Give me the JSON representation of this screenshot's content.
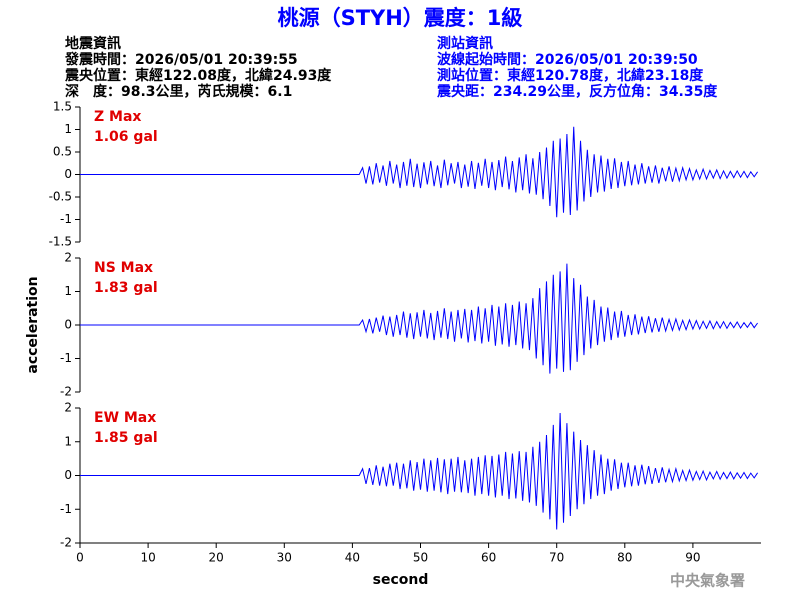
{
  "header": {
    "title": "桃源（STYH）震度：1級",
    "left": [
      "地震資訊",
      "發震時間：2026/05/01 20:39:55",
      "震央位置：東經122.08度，北緯24.93度",
      "深　度：98.3公里，芮氏規模：6.1"
    ],
    "right": [
      "測站資訊",
      "波線起始時間：2026/05/01 20:39:50",
      "測站位置：東經120.78度，北緯23.18度",
      "震央距：234.29公里，反方位角：34.35度"
    ],
    "footer": "中央氣象署"
  },
  "chart_data": [
    {
      "type": "line",
      "color": "#0000ff",
      "annotation": [
        "Z Max",
        "1.06 gal"
      ],
      "annotation_color": "#e00000",
      "xlim": [
        0,
        100
      ],
      "ylim": [
        -1.5,
        1.5
      ],
      "yticks": [
        1.5,
        1,
        0.5,
        0,
        -0.5,
        -1,
        -1.5
      ],
      "x": [
        0,
        41,
        41.5,
        42,
        42.5,
        43,
        43.5,
        44,
        44.5,
        45,
        45.5,
        46,
        46.5,
        47,
        47.5,
        48,
        48.5,
        49,
        49.5,
        50,
        50.5,
        51,
        51.5,
        52,
        52.5,
        53,
        53.5,
        54,
        54.5,
        55,
        55.5,
        56,
        56.5,
        57,
        57.5,
        58,
        58.5,
        59,
        59.5,
        60,
        60.5,
        61,
        61.5,
        62,
        62.5,
        63,
        63.5,
        64,
        64.5,
        65,
        65.5,
        66,
        66.5,
        67,
        67.5,
        68,
        68.5,
        69,
        69.5,
        70,
        70.5,
        71,
        71.5,
        72,
        72.5,
        73,
        73.5,
        74,
        74.5,
        75,
        75.5,
        76,
        76.5,
        77,
        77.5,
        78,
        78.5,
        79,
        79.5,
        80,
        80.5,
        81,
        81.5,
        82,
        82.5,
        83,
        83.5,
        84,
        84.5,
        85,
        85.5,
        86,
        86.5,
        87,
        87.5,
        88,
        88.5,
        89,
        89.5,
        90,
        90.5,
        91,
        91.5,
        92,
        92.5,
        93,
        93.5,
        94,
        94.5,
        95,
        95.5,
        96,
        96.5,
        97,
        97.5,
        98,
        98.5,
        99,
        99.5
      ],
      "values": [
        0,
        0,
        0.15,
        -0.2,
        0.18,
        -0.22,
        0.25,
        -0.18,
        0.2,
        -0.25,
        0.3,
        -0.2,
        0.22,
        -0.3,
        0.28,
        -0.25,
        0.35,
        -0.28,
        0.24,
        -0.3,
        0.27,
        -0.22,
        0.3,
        -0.26,
        0.2,
        -0.3,
        0.33,
        -0.24,
        0.25,
        -0.2,
        0.28,
        -0.3,
        0.22,
        -0.27,
        0.3,
        -0.32,
        0.26,
        -0.25,
        0.35,
        -0.3,
        0.28,
        -0.35,
        0.32,
        -0.28,
        0.4,
        -0.33,
        0.3,
        -0.4,
        0.38,
        -0.35,
        0.45,
        -0.42,
        0.36,
        -0.45,
        0.5,
        -0.55,
        0.6,
        -0.7,
        0.75,
        -0.95,
        0.8,
        -0.85,
        0.9,
        -0.9,
        1.06,
        -0.8,
        0.75,
        -0.6,
        0.55,
        -0.5,
        0.45,
        -0.4,
        0.42,
        -0.38,
        0.35,
        -0.32,
        0.36,
        -0.3,
        0.28,
        -0.26,
        0.3,
        -0.24,
        0.22,
        -0.22,
        0.25,
        -0.2,
        0.18,
        -0.18,
        0.2,
        -0.2,
        0.15,
        -0.15,
        0.18,
        -0.16,
        0.14,
        -0.14,
        0.15,
        -0.12,
        0.13,
        -0.12,
        0.1,
        -0.1,
        0.12,
        -0.1,
        0.09,
        -0.08,
        0.1,
        -0.09,
        0.08,
        -0.08,
        0.07,
        -0.07,
        0.08,
        -0.06,
        0.07,
        -0.07,
        0.06,
        -0.05,
        0.06
      ]
    },
    {
      "type": "line",
      "color": "#0000ff",
      "annotation": [
        "NS Max",
        "1.83 gal"
      ],
      "annotation_color": "#e00000",
      "ylabel": "acceleration",
      "xlim": [
        0,
        100
      ],
      "ylim": [
        -2,
        2
      ],
      "yticks": [
        2,
        1,
        0,
        -1,
        -2
      ],
      "x": [
        0,
        41,
        41.5,
        42,
        42.5,
        43,
        43.5,
        44,
        44.5,
        45,
        45.5,
        46,
        46.5,
        47,
        47.5,
        48,
        48.5,
        49,
        49.5,
        50,
        50.5,
        51,
        51.5,
        52,
        52.5,
        53,
        53.5,
        54,
        54.5,
        55,
        55.5,
        56,
        56.5,
        57,
        57.5,
        58,
        58.5,
        59,
        59.5,
        60,
        60.5,
        61,
        61.5,
        62,
        62.5,
        63,
        63.5,
        64,
        64.5,
        65,
        65.5,
        66,
        66.5,
        67,
        67.5,
        68,
        68.5,
        69,
        69.5,
        70,
        70.5,
        71,
        71.5,
        72,
        72.5,
        73,
        73.5,
        74,
        74.5,
        75,
        75.5,
        76,
        76.5,
        77,
        77.5,
        78,
        78.5,
        79,
        79.5,
        80,
        80.5,
        81,
        81.5,
        82,
        82.5,
        83,
        83.5,
        84,
        84.5,
        85,
        85.5,
        86,
        86.5,
        87,
        87.5,
        88,
        88.5,
        89,
        89.5,
        90,
        90.5,
        91,
        91.5,
        92,
        92.5,
        93,
        93.5,
        94,
        94.5,
        95,
        95.5,
        96,
        96.5,
        97,
        97.5,
        98,
        98.5,
        99,
        99.5
      ],
      "values": [
        0,
        0,
        0.15,
        -0.2,
        0.18,
        -0.25,
        0.22,
        -0.2,
        0.28,
        -0.3,
        0.25,
        -0.35,
        0.3,
        -0.3,
        0.4,
        -0.38,
        0.35,
        -0.42,
        0.38,
        -0.35,
        0.45,
        -0.4,
        0.36,
        -0.45,
        0.42,
        -0.38,
        0.5,
        -0.42,
        0.4,
        -0.5,
        0.45,
        -0.4,
        0.48,
        -0.52,
        0.45,
        -0.48,
        0.55,
        -0.55,
        0.5,
        -0.5,
        0.6,
        -0.62,
        0.55,
        -0.58,
        0.65,
        -0.65,
        0.6,
        -0.6,
        0.7,
        -0.7,
        0.65,
        -0.75,
        0.8,
        -1.0,
        1.1,
        -1.2,
        1.3,
        -1.45,
        1.5,
        -1.3,
        1.6,
        -1.4,
        1.83,
        -1.35,
        1.4,
        -1.1,
        1.2,
        -0.9,
        0.85,
        -0.7,
        0.75,
        -0.6,
        0.55,
        -0.5,
        0.52,
        -0.45,
        0.4,
        -0.38,
        0.42,
        -0.35,
        0.3,
        -0.3,
        0.32,
        -0.28,
        0.25,
        -0.24,
        0.26,
        -0.22,
        0.2,
        -0.2,
        0.22,
        -0.18,
        0.17,
        -0.16,
        0.18,
        -0.15,
        0.14,
        -0.14,
        0.15,
        -0.12,
        0.13,
        -0.12,
        0.11,
        -0.1,
        0.12,
        -0.11,
        0.1,
        -0.09,
        0.1,
        -0.1,
        0.08,
        -0.08,
        0.09,
        -0.09,
        0.07,
        -0.07,
        0.08,
        -0.08,
        0.06
      ]
    },
    {
      "type": "line",
      "color": "#0000ff",
      "annotation": [
        "EW Max",
        "1.85 gal"
      ],
      "annotation_color": "#e00000",
      "xlabel": "second",
      "xlim": [
        0,
        100
      ],
      "xticks": [
        0,
        10,
        20,
        30,
        40,
        50,
        60,
        70,
        80,
        90
      ],
      "ylim": [
        -2,
        2
      ],
      "yticks": [
        2,
        1,
        0,
        -1,
        -2
      ],
      "x": [
        0,
        41,
        41.5,
        42,
        42.5,
        43,
        43.5,
        44,
        44.5,
        45,
        45.5,
        46,
        46.5,
        47,
        47.5,
        48,
        48.5,
        49,
        49.5,
        50,
        50.5,
        51,
        51.5,
        52,
        52.5,
        53,
        53.5,
        54,
        54.5,
        55,
        55.5,
        56,
        56.5,
        57,
        57.5,
        58,
        58.5,
        59,
        59.5,
        60,
        60.5,
        61,
        61.5,
        62,
        62.5,
        63,
        63.5,
        64,
        64.5,
        65,
        65.5,
        66,
        66.5,
        67,
        67.5,
        68,
        68.5,
        69,
        69.5,
        70,
        70.5,
        71,
        71.5,
        72,
        72.5,
        73,
        73.5,
        74,
        74.5,
        75,
        75.5,
        76,
        76.5,
        77,
        77.5,
        78,
        78.5,
        79,
        79.5,
        80,
        80.5,
        81,
        81.5,
        82,
        82.5,
        83,
        83.5,
        84,
        84.5,
        85,
        85.5,
        86,
        86.5,
        87,
        87.5,
        88,
        88.5,
        89,
        89.5,
        90,
        90.5,
        91,
        91.5,
        92,
        92.5,
        93,
        93.5,
        94,
        94.5,
        95,
        95.5,
        96,
        96.5,
        97,
        97.5,
        98,
        98.5,
        99,
        99.5
      ],
      "values": [
        0,
        0,
        0.2,
        -0.25,
        0.22,
        -0.28,
        0.3,
        -0.3,
        0.26,
        -0.32,
        0.35,
        -0.3,
        0.38,
        -0.4,
        0.35,
        -0.38,
        0.45,
        -0.45,
        0.4,
        -0.42,
        0.5,
        -0.48,
        0.45,
        -0.45,
        0.52,
        -0.5,
        0.48,
        -0.55,
        0.5,
        -0.48,
        0.55,
        -0.5,
        0.45,
        -0.52,
        0.5,
        -0.6,
        0.55,
        -0.55,
        0.6,
        -0.6,
        0.58,
        -0.65,
        0.62,
        -0.6,
        0.7,
        -0.7,
        0.65,
        -0.68,
        0.72,
        -0.75,
        0.7,
        -0.8,
        0.85,
        -0.9,
        1.0,
        -1.1,
        1.2,
        -1.3,
        1.5,
        -1.6,
        1.85,
        -1.4,
        1.55,
        -1.2,
        1.3,
        -1.0,
        1.05,
        -0.85,
        0.9,
        -0.7,
        0.75,
        -0.6,
        0.62,
        -0.55,
        0.5,
        -0.45,
        0.48,
        -0.4,
        0.38,
        -0.35,
        0.38,
        -0.32,
        0.3,
        -0.3,
        0.32,
        -0.26,
        0.28,
        -0.25,
        0.22,
        -0.22,
        0.24,
        -0.2,
        0.18,
        -0.18,
        0.2,
        -0.16,
        0.15,
        -0.15,
        0.16,
        -0.14,
        0.12,
        -0.12,
        0.13,
        -0.13,
        0.1,
        -0.1,
        0.12,
        -0.11,
        0.09,
        -0.09,
        0.1,
        -0.1,
        0.08,
        -0.08,
        0.09,
        -0.09,
        0.07,
        -0.07,
        0.08
      ]
    }
  ]
}
